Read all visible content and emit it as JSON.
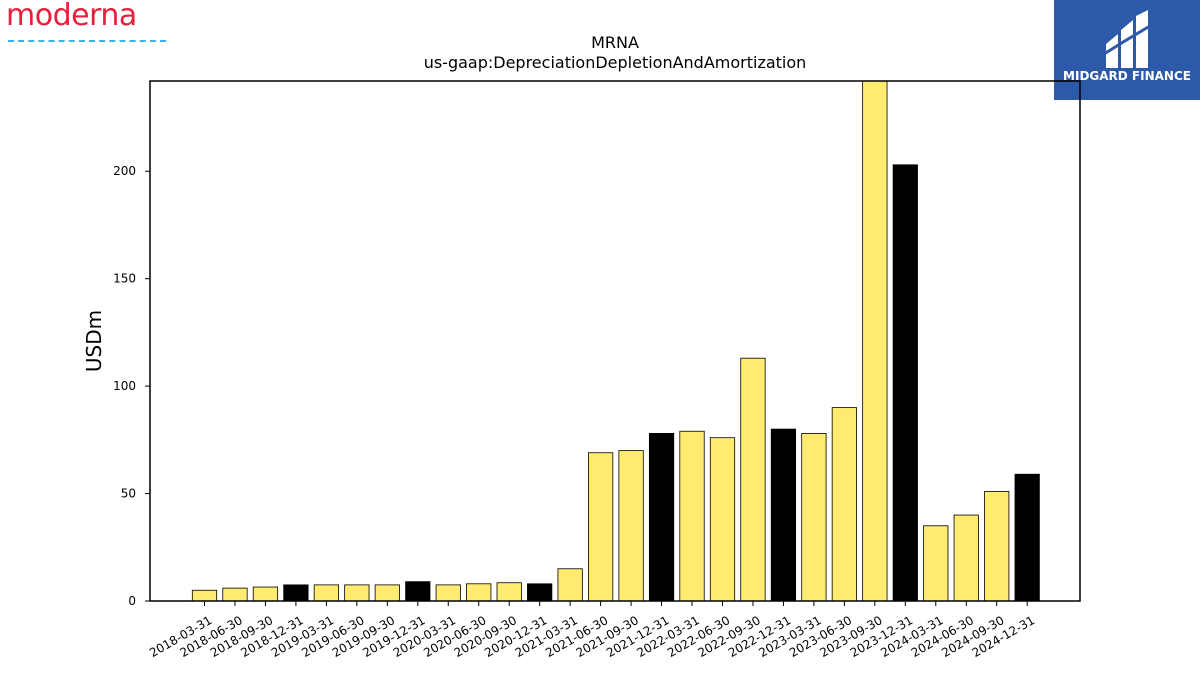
{
  "logos": {
    "left_wordmark": "moderna",
    "right_wordmark": "MIDGARD FINANCE"
  },
  "colors": {
    "bar_yellow": "#ffeb70",
    "bar_black": "#000000",
    "moderna_red": "#e5213c",
    "moderna_underline": "#3ab4e6",
    "midgard_blue": "#2c5aa8"
  },
  "chart_data": {
    "type": "bar",
    "title": "MRNA",
    "subtitle": "us-gaap:DepreciationDepletionAndAmortization",
    "xlabel": "",
    "ylabel": "USDm",
    "ylim": [
      0,
      242
    ],
    "yticks": [
      0,
      50,
      100,
      150,
      200
    ],
    "grid": false,
    "legend": "none",
    "categories": [
      "2018-03-31",
      "2018-06-30",
      "2018-09-30",
      "2018-12-31",
      "2019-03-31",
      "2019-06-30",
      "2019-09-30",
      "2019-12-31",
      "2020-03-31",
      "2020-06-30",
      "2020-09-30",
      "2020-12-31",
      "2021-03-31",
      "2021-06-30",
      "2021-09-30",
      "2021-12-31",
      "2022-03-31",
      "2022-06-30",
      "2022-09-30",
      "2022-12-31",
      "2023-03-31",
      "2023-06-30",
      "2023-09-30",
      "2023-12-31",
      "2024-03-31",
      "2024-06-30",
      "2024-09-30",
      "2024-12-31"
    ],
    "values": [
      5,
      6,
      6.5,
      7.5,
      7.5,
      7.5,
      7.5,
      9,
      7.5,
      8,
      8.5,
      8,
      15,
      69,
      70,
      78,
      79,
      76,
      113,
      80,
      78,
      90,
      242,
      203,
      35,
      40,
      51,
      59
    ],
    "fiscal_year_end": [
      false,
      false,
      false,
      true,
      false,
      false,
      false,
      true,
      false,
      false,
      false,
      true,
      false,
      false,
      false,
      true,
      false,
      false,
      false,
      true,
      false,
      false,
      false,
      true,
      false,
      false,
      false,
      true
    ]
  }
}
